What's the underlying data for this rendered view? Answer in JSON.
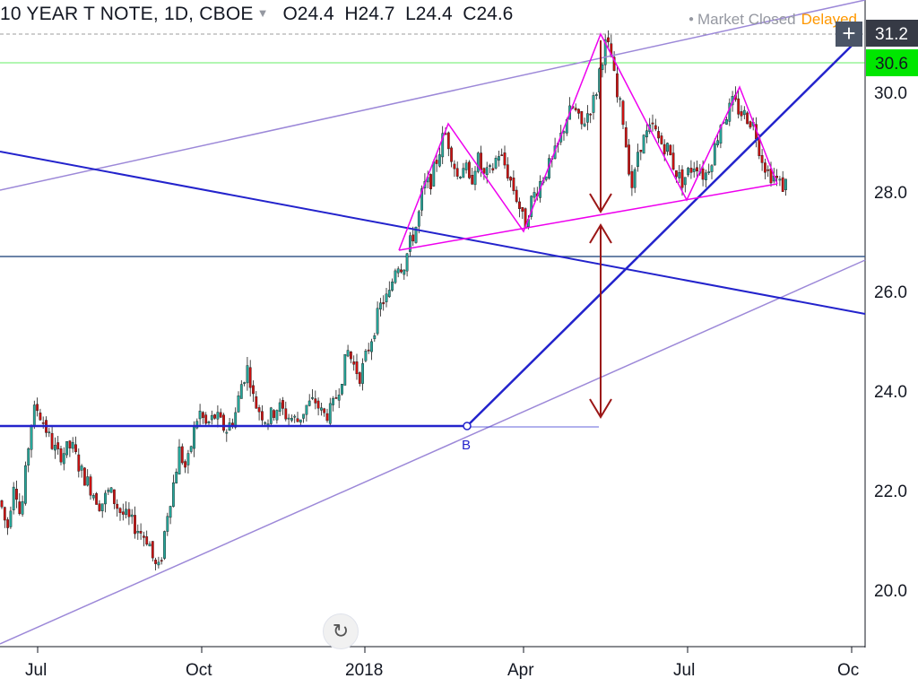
{
  "header": {
    "symbol": "10 YEAR T NOTE, 1D, CBOE",
    "open_label": "O",
    "open": "24.4",
    "high_label": "H",
    "high": "24.7",
    "low_label": "L",
    "low": "24.4",
    "close_label": "C",
    "close": "24.6",
    "caret_icon": "chevron-down-icon"
  },
  "status": {
    "dot_icon": "dot-icon",
    "market": "Market Closed",
    "delayed": "Delayed",
    "delayed_color": "#ff9800"
  },
  "price_tags": [
    {
      "value": "31.2",
      "bg": "#363a45",
      "fg": "#ffffff"
    },
    {
      "value": "30.6",
      "bg": "#00e600",
      "fg": "#131722"
    }
  ],
  "controls": {
    "reset_icon": "reset-icon",
    "plus_icon": "crosshair-plus-icon"
  },
  "chart_data": {
    "type": "candlestick",
    "title": "10 YEAR T NOTE, 1D, CBOE",
    "y_ticks": [
      "20.0",
      "22.0",
      "24.0",
      "26.0",
      "28.0",
      "30.0"
    ],
    "x_ticks": [
      "Jul",
      "Oct",
      "2018",
      "Apr",
      "Jul",
      "Oc"
    ],
    "ylim": [
      18.9,
      31.9
    ],
    "colors": {
      "up": "#26a69a",
      "down": "#cc1111",
      "pattern": "#ee00ee",
      "trend": "#2323cc",
      "channel": "#9c88d8",
      "arrow": "#9b1616",
      "green_line": "#00e600"
    },
    "price_path": [
      [
        0,
        21.8
      ],
      [
        8,
        21.2
      ],
      [
        16,
        22.3
      ],
      [
        23,
        21.4
      ],
      [
        34,
        23.3
      ],
      [
        40,
        23.7
      ],
      [
        48,
        23.4
      ],
      [
        56,
        23.0
      ],
      [
        65,
        22.7
      ],
      [
        80,
        22.9
      ],
      [
        90,
        22.4
      ],
      [
        103,
        22.0
      ],
      [
        112,
        21.7
      ],
      [
        122,
        22.0
      ],
      [
        133,
        21.6
      ],
      [
        144,
        21.4
      ],
      [
        155,
        21.2
      ],
      [
        166,
        21.0
      ],
      [
        172,
        20.5
      ],
      [
        178,
        20.4
      ],
      [
        186,
        21.5
      ],
      [
        193,
        22.1
      ],
      [
        200,
        22.8
      ],
      [
        208,
        22.4
      ],
      [
        215,
        23.1
      ],
      [
        222,
        23.6
      ],
      [
        230,
        23.3
      ],
      [
        240,
        23.5
      ],
      [
        252,
        23.2
      ],
      [
        262,
        23.5
      ],
      [
        270,
        24.2
      ],
      [
        277,
        24.5
      ],
      [
        283,
        23.8
      ],
      [
        290,
        23.6
      ],
      [
        298,
        23.4
      ],
      [
        310,
        23.7
      ],
      [
        320,
        23.5
      ],
      [
        332,
        23.4
      ],
      [
        342,
        23.7
      ],
      [
        352,
        23.8
      ],
      [
        360,
        23.5
      ],
      [
        370,
        23.6
      ],
      [
        380,
        24.2
      ],
      [
        388,
        24.8
      ],
      [
        395,
        24.5
      ],
      [
        402,
        24.3
      ],
      [
        410,
        24.8
      ],
      [
        418,
        25.3
      ],
      [
        426,
        25.8
      ],
      [
        434,
        25.9
      ],
      [
        442,
        26.6
      ],
      [
        450,
        26.5
      ],
      [
        458,
        27.0
      ],
      [
        466,
        27.4
      ],
      [
        472,
        28.1
      ],
      [
        480,
        28.2
      ],
      [
        488,
        28.7
      ],
      [
        496,
        29.2
      ],
      [
        502,
        28.9
      ],
      [
        510,
        28.3
      ],
      [
        518,
        28.6
      ],
      [
        524,
        28.1
      ],
      [
        532,
        28.7
      ],
      [
        540,
        28.3
      ],
      [
        548,
        28.4
      ],
      [
        556,
        28.8
      ],
      [
        564,
        28.5
      ],
      [
        572,
        28.1
      ],
      [
        578,
        27.8
      ],
      [
        585,
        27.3
      ],
      [
        592,
        27.8
      ],
      [
        600,
        28.1
      ],
      [
        608,
        28.4
      ],
      [
        616,
        28.6
      ],
      [
        624,
        29.0
      ],
      [
        632,
        29.5
      ],
      [
        640,
        29.7
      ],
      [
        648,
        29.3
      ],
      [
        656,
        29.6
      ],
      [
        664,
        29.9
      ],
      [
        670,
        30.6
      ],
      [
        676,
        31.0
      ],
      [
        682,
        30.7
      ],
      [
        688,
        29.9
      ],
      [
        694,
        29.6
      ],
      [
        700,
        28.7
      ],
      [
        706,
        28.0
      ],
      [
        712,
        28.9
      ],
      [
        720,
        29.1
      ],
      [
        728,
        29.3
      ],
      [
        736,
        29.0
      ],
      [
        744,
        28.9
      ],
      [
        752,
        28.5
      ],
      [
        760,
        28.2
      ],
      [
        768,
        28.4
      ],
      [
        776,
        28.6
      ],
      [
        786,
        28.3
      ],
      [
        796,
        28.8
      ],
      [
        804,
        29.4
      ],
      [
        812,
        29.6
      ],
      [
        818,
        29.8
      ],
      [
        826,
        29.6
      ],
      [
        834,
        29.5
      ],
      [
        842,
        29.3
      ],
      [
        848,
        28.8
      ],
      [
        856,
        28.4
      ],
      [
        864,
        28.3
      ],
      [
        872,
        28.1
      ],
      [
        878,
        28.2
      ]
    ],
    "annotations": {
      "point_label": "B"
    }
  }
}
